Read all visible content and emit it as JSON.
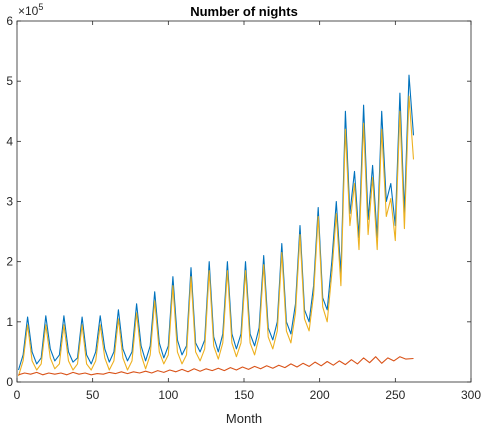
{
  "chart_data": {
    "type": "line",
    "title": "Number of nights",
    "xlabel": "Month",
    "ylabel": "",
    "xlim": [
      0,
      300
    ],
    "ylim": [
      0,
      6
    ],
    "y_exponent_label": "×10",
    "y_exponent_power": "5",
    "xticks": [
      "0",
      "50",
      "100",
      "150",
      "200",
      "250",
      "300"
    ],
    "yticks": [
      "0",
      "1",
      "2",
      "3",
      "4",
      "5",
      "6"
    ],
    "grid": false,
    "legend": "none",
    "series": [
      {
        "color": "#0072BD",
        "x": [
          1,
          4,
          7,
          10,
          13,
          16,
          19,
          22,
          25,
          28,
          31,
          34,
          37,
          40,
          43,
          46,
          49,
          52,
          55,
          58,
          61,
          64,
          67,
          70,
          73,
          76,
          79,
          82,
          85,
          88,
          91,
          94,
          97,
          100,
          103,
          106,
          109,
          112,
          115,
          118,
          121,
          124,
          127,
          130,
          133,
          136,
          139,
          142,
          145,
          148,
          151,
          154,
          157,
          160,
          163,
          166,
          169,
          172,
          175,
          178,
          181,
          184,
          187,
          190,
          193,
          196,
          199,
          202,
          205,
          208,
          211,
          214,
          217,
          220,
          223,
          226,
          229,
          232,
          235,
          238,
          241,
          244,
          247,
          250,
          253,
          256,
          259,
          262
        ],
        "values": [
          0.2,
          0.45,
          1.08,
          0.5,
          0.3,
          0.4,
          1.1,
          0.55,
          0.35,
          0.45,
          1.1,
          0.5,
          0.33,
          0.4,
          1.08,
          0.45,
          0.3,
          0.5,
          1.1,
          0.55,
          0.33,
          0.5,
          1.2,
          0.55,
          0.35,
          0.5,
          1.3,
          0.6,
          0.35,
          0.6,
          1.5,
          0.65,
          0.4,
          0.6,
          1.75,
          0.7,
          0.45,
          0.6,
          1.9,
          0.65,
          0.5,
          0.7,
          2.0,
          0.75,
          0.5,
          0.8,
          2.0,
          0.8,
          0.55,
          0.8,
          2.0,
          0.8,
          0.6,
          0.9,
          2.1,
          0.9,
          0.7,
          1.0,
          2.3,
          1.0,
          0.8,
          1.3,
          2.6,
          1.2,
          1.0,
          1.6,
          2.9,
          1.4,
          1.2,
          2.0,
          3.0,
          1.8,
          4.5,
          2.8,
          3.5,
          2.4,
          4.6,
          2.7,
          3.6,
          2.4,
          4.5,
          3.0,
          3.3,
          2.6,
          4.8,
          2.8,
          5.1,
          4.1
        ]
      },
      {
        "color": "#EDB120",
        "x": [
          1,
          4,
          7,
          10,
          13,
          16,
          19,
          22,
          25,
          28,
          31,
          34,
          37,
          40,
          43,
          46,
          49,
          52,
          55,
          58,
          61,
          64,
          67,
          70,
          73,
          76,
          79,
          82,
          85,
          88,
          91,
          94,
          97,
          100,
          103,
          106,
          109,
          112,
          115,
          118,
          121,
          124,
          127,
          130,
          133,
          136,
          139,
          142,
          145,
          148,
          151,
          154,
          157,
          160,
          163,
          166,
          169,
          172,
          175,
          178,
          181,
          184,
          187,
          190,
          193,
          196,
          199,
          202,
          205,
          208,
          211,
          214,
          217,
          220,
          223,
          226,
          229,
          232,
          235,
          238,
          241,
          244,
          247,
          250,
          253,
          256,
          259,
          262
        ],
        "values": [
          0.1,
          0.35,
          0.95,
          0.35,
          0.2,
          0.3,
          0.95,
          0.4,
          0.22,
          0.3,
          0.95,
          0.35,
          0.2,
          0.3,
          0.95,
          0.3,
          0.2,
          0.35,
          0.95,
          0.4,
          0.2,
          0.35,
          1.05,
          0.4,
          0.2,
          0.35,
          1.15,
          0.45,
          0.22,
          0.45,
          1.35,
          0.5,
          0.3,
          0.45,
          1.6,
          0.5,
          0.3,
          0.45,
          1.75,
          0.5,
          0.35,
          0.55,
          1.85,
          0.6,
          0.38,
          0.65,
          1.85,
          0.65,
          0.42,
          0.65,
          1.85,
          0.65,
          0.45,
          0.75,
          1.95,
          0.75,
          0.55,
          0.85,
          2.15,
          0.85,
          0.65,
          1.15,
          2.45,
          1.05,
          0.85,
          1.45,
          2.75,
          1.25,
          1.0,
          1.8,
          2.8,
          1.6,
          4.2,
          2.6,
          3.3,
          2.2,
          4.3,
          2.45,
          3.4,
          2.2,
          4.2,
          2.75,
          3.05,
          2.35,
          4.5,
          2.55,
          4.75,
          3.7
        ]
      },
      {
        "color": "#D95319",
        "x": [
          1,
          5,
          9,
          13,
          17,
          21,
          25,
          29,
          33,
          37,
          41,
          45,
          49,
          53,
          57,
          61,
          65,
          69,
          73,
          77,
          81,
          85,
          89,
          93,
          97,
          101,
          105,
          109,
          113,
          117,
          121,
          125,
          129,
          133,
          137,
          141,
          145,
          149,
          153,
          157,
          161,
          165,
          169,
          173,
          177,
          181,
          185,
          189,
          193,
          197,
          201,
          205,
          209,
          213,
          217,
          221,
          225,
          229,
          233,
          237,
          241,
          245,
          249,
          253,
          257,
          262
        ],
        "values": [
          0.12,
          0.15,
          0.13,
          0.16,
          0.12,
          0.15,
          0.13,
          0.15,
          0.12,
          0.16,
          0.13,
          0.15,
          0.12,
          0.14,
          0.13,
          0.16,
          0.14,
          0.17,
          0.14,
          0.17,
          0.15,
          0.18,
          0.15,
          0.19,
          0.16,
          0.2,
          0.17,
          0.21,
          0.17,
          0.22,
          0.18,
          0.22,
          0.19,
          0.23,
          0.19,
          0.24,
          0.2,
          0.25,
          0.21,
          0.26,
          0.22,
          0.27,
          0.23,
          0.28,
          0.24,
          0.3,
          0.25,
          0.31,
          0.26,
          0.33,
          0.27,
          0.34,
          0.28,
          0.35,
          0.29,
          0.37,
          0.3,
          0.4,
          0.32,
          0.42,
          0.31,
          0.4,
          0.35,
          0.42,
          0.38,
          0.39
        ]
      }
    ]
  }
}
